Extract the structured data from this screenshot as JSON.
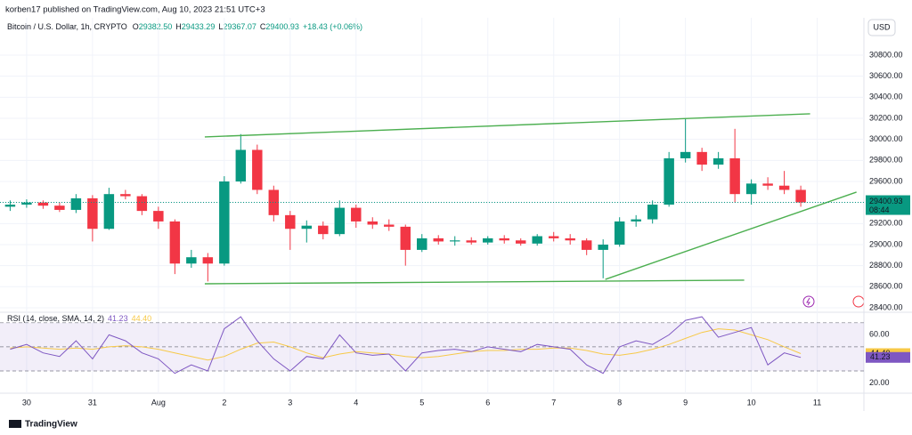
{
  "header": "korben17 published on TradingView.com, Aug 10, 2023 21:51 UTC+3",
  "footer": "TradingView",
  "currency": "USD",
  "chart_data": {
    "type": "candlestick",
    "symbol": "Bitcoin / U.S. Dollar, 1h, CRYPTO",
    "ohlc_legend": [
      {
        "key": "O",
        "value": "29382.50"
      },
      {
        "key": "H",
        "value": "29433.29"
      },
      {
        "key": "L",
        "value": "29367.07"
      },
      {
        "key": "C",
        "value": "29400.93"
      }
    ],
    "change": "+18.43 (+0.06%)",
    "up_color": "#089981",
    "down_color": "#f23645",
    "x": [
      -6,
      0,
      6,
      12,
      18,
      24,
      30,
      36,
      42,
      48,
      54,
      60,
      66,
      72,
      78,
      84,
      90,
      96,
      102,
      108,
      114,
      120,
      126,
      132,
      138,
      144,
      150,
      156,
      162,
      168,
      174,
      180,
      186,
      192,
      198,
      204,
      210,
      216,
      222,
      228,
      234,
      240,
      246,
      252,
      258,
      264,
      270,
      276,
      282
    ],
    "open": [
      29360,
      29380,
      29400,
      29370,
      29330,
      29440,
      29150,
      29480,
      29460,
      29320,
      29220,
      28820,
      28880,
      28820,
      29600,
      29900,
      29520,
      29280,
      29150,
      29180,
      29100,
      29350,
      29220,
      29190,
      29170,
      28950,
      29060,
      29030,
      29040,
      29020,
      29060,
      29040,
      29010,
      29080,
      29060,
      29040,
      28950,
      29000,
      29220,
      29240,
      29380,
      29820,
      29880,
      29760,
      29820,
      29480,
      29580,
      29560,
      29520
    ],
    "high": [
      29420,
      29430,
      29420,
      29400,
      29480,
      29470,
      29540,
      29520,
      29480,
      29360,
      29240,
      28950,
      28920,
      29650,
      30050,
      29950,
      29560,
      29320,
      29230,
      29220,
      29420,
      29380,
      29260,
      29240,
      29190,
      29100,
      29090,
      29080,
      29070,
      29080,
      29090,
      29060,
      29100,
      29120,
      29100,
      29060,
      29050,
      29260,
      29280,
      29420,
      29880,
      30200,
      29920,
      29880,
      30100,
      29620,
      29640,
      29700,
      29560
    ],
    "low": [
      29320,
      29350,
      29340,
      29310,
      29300,
      29030,
      29140,
      29430,
      29280,
      29150,
      28720,
      28780,
      28650,
      28800,
      29580,
      29480,
      29220,
      28950,
      29020,
      29050,
      29080,
      29160,
      29150,
      29130,
      28800,
      28930,
      29000,
      28990,
      29000,
      29000,
      29010,
      28990,
      28990,
      29030,
      29000,
      28900,
      28680,
      28980,
      29170,
      29200,
      29360,
      29780,
      29700,
      29720,
      29400,
      29380,
      29520,
      29480,
      29360
    ],
    "close": [
      29380,
      29400,
      29370,
      29330,
      29440,
      29150,
      29480,
      29460,
      29320,
      29220,
      28820,
      28880,
      28820,
      29600,
      29900,
      29520,
      29280,
      29150,
      29180,
      29100,
      29350,
      29220,
      29190,
      29170,
      28950,
      29060,
      29030,
      29040,
      29020,
      29060,
      29040,
      29010,
      29080,
      29060,
      29040,
      28950,
      29000,
      29220,
      29240,
      29380,
      29820,
      29880,
      29760,
      29820,
      29480,
      29580,
      29560,
      29520,
      29400.93
    ],
    "xlim": [
      -9.7,
      305
    ],
    "xticks": [
      {
        "value": 0,
        "label": "30"
      },
      {
        "value": 24,
        "label": "31"
      },
      {
        "value": 48,
        "label": "Aug"
      },
      {
        "value": 72,
        "label": "2"
      },
      {
        "value": 96,
        "label": "3"
      },
      {
        "value": 120,
        "label": "4"
      },
      {
        "value": 144,
        "label": "5"
      },
      {
        "value": 168,
        "label": "6"
      },
      {
        "value": 192,
        "label": "7"
      },
      {
        "value": 216,
        "label": "8"
      },
      {
        "value": 240,
        "label": "9"
      },
      {
        "value": 264,
        "label": "10"
      },
      {
        "value": 288,
        "label": "11"
      }
    ],
    "ylim": [
      28366,
      31138
    ],
    "yticks": [
      {
        "value": 28400,
        "label": "28400.00"
      },
      {
        "value": 28600,
        "label": "28600.00"
      },
      {
        "value": 28800,
        "label": "28800.00"
      },
      {
        "value": 29000,
        "label": "29000.00"
      },
      {
        "value": 29200,
        "label": "29200.00"
      },
      {
        "value": 29400,
        "label": "29400.00"
      },
      {
        "value": 29600,
        "label": "29600.00"
      },
      {
        "value": 29800,
        "label": "29800.00"
      },
      {
        "value": 30000,
        "label": "30000.00"
      },
      {
        "value": 30200,
        "label": "30200.00"
      },
      {
        "value": 30400,
        "label": "30400.00"
      },
      {
        "value": 30600,
        "label": "30600.00"
      },
      {
        "value": 30800,
        "label": "30800.00"
      }
    ],
    "last_price": {
      "value": 29400.93,
      "label": "29400.93",
      "countdown": "08:44",
      "color": "#089981"
    },
    "trendline_color": "#4caf50",
    "trendlines": [
      {
        "x": [
          64.9,
          285.4
        ],
        "y": [
          30023,
          30243
        ]
      },
      {
        "x": [
          64.9,
          261.4
        ],
        "y": [
          28628,
          28662
        ]
      },
      {
        "x": [
          210.8,
          302.3
        ],
        "y": [
          28670,
          29499
        ]
      }
    ],
    "rsi": {
      "title": "RSI (14, close, SMA, 14, 2)",
      "color": "#7e57c2",
      "ma_color": "#f7c948",
      "values": [
        48,
        52,
        45,
        42,
        55,
        40,
        60,
        55,
        45,
        40,
        28,
        35,
        30,
        65,
        75,
        55,
        40,
        30,
        42,
        40,
        60,
        45,
        43,
        44,
        30,
        45,
        47,
        48,
        46,
        50,
        48,
        46,
        52,
        50,
        48,
        35,
        28,
        50,
        55,
        52,
        60,
        72,
        75,
        58,
        62,
        66,
        35,
        45,
        41.23
      ],
      "ma_values": [
        49,
        50,
        49,
        48,
        49,
        48,
        50,
        51,
        50,
        48,
        45,
        42,
        39,
        42,
        48,
        53,
        54,
        50,
        45,
        41,
        44,
        46,
        45,
        44,
        42,
        41,
        42,
        44,
        46,
        47,
        47,
        48,
        48,
        49,
        49,
        47,
        44,
        43,
        45,
        48,
        52,
        57,
        62,
        65,
        64,
        60,
        56,
        50,
        44.4
      ],
      "value_label": "41.23",
      "ma_value_label": "44.40",
      "ylim": [
        13,
        78
      ],
      "yticks": [
        {
          "value": 20,
          "label": "20.00"
        },
        {
          "value": 60,
          "label": "60.00"
        }
      ],
      "bands": [
        30,
        50,
        70
      ]
    }
  }
}
